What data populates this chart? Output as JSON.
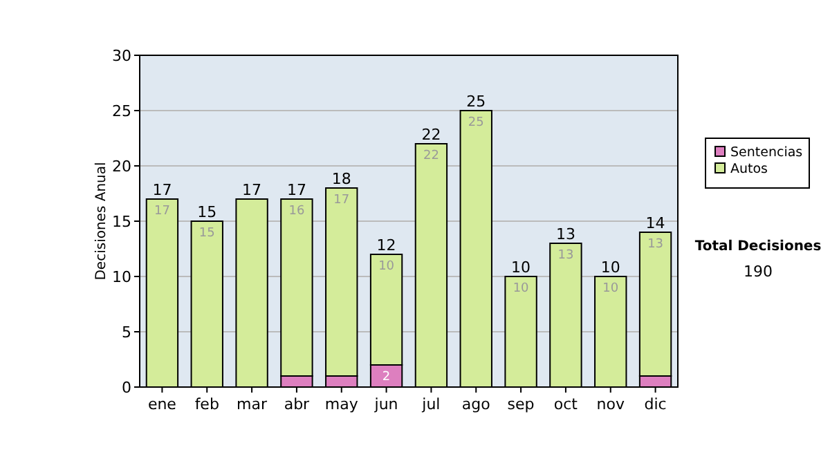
{
  "chart_data": {
    "type": "bar",
    "stacked": true,
    "ylabel": "Decisiones Anual",
    "categories": [
      "ene",
      "feb",
      "mar",
      "abr",
      "may",
      "jun",
      "jul",
      "ago",
      "sep",
      "oct",
      "nov",
      "dic"
    ],
    "series": [
      {
        "name": "Sentencias",
        "color": "#dd7fbf",
        "values": [
          0,
          0,
          0,
          1,
          1,
          2,
          0,
          0,
          0,
          0,
          0,
          1
        ],
        "value_labels": [
          null,
          null,
          null,
          null,
          null,
          "2",
          null,
          null,
          null,
          null,
          null,
          null
        ]
      },
      {
        "name": "Autos",
        "color": "#d4ec9a",
        "values": [
          17,
          15,
          17,
          16,
          17,
          10,
          22,
          25,
          10,
          13,
          10,
          13
        ],
        "value_labels": [
          "17",
          "15",
          null,
          "16",
          "17",
          "10",
          "22",
          "25",
          "10",
          "13",
          "10",
          "13"
        ]
      }
    ],
    "totals": [
      "17",
      "15",
      "17",
      "17",
      "18",
      "12",
      "22",
      "25",
      "10",
      "13",
      "10",
      "14"
    ],
    "ylim": [
      0,
      30
    ],
    "yticks": [
      0,
      5,
      10,
      15,
      20,
      25,
      30
    ],
    "grid": "y",
    "legend": "right",
    "annotations": [
      "Total Decisiones",
      "190"
    ]
  }
}
